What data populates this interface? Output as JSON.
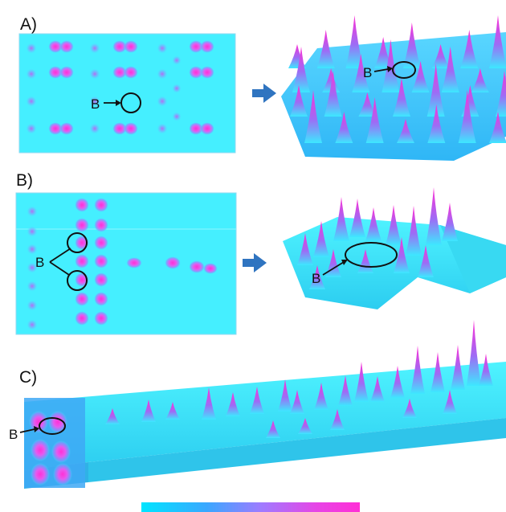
{
  "panels": [
    {
      "id": "A",
      "label": "A)",
      "marker": "B"
    },
    {
      "id": "B",
      "label": "B)",
      "marker": "B"
    },
    {
      "id": "C",
      "label": "C)",
      "marker": "B"
    }
  ],
  "colors": {
    "background": "#45efff",
    "low": "#3ff0ff",
    "mid": "#2f9cf2",
    "high": "#ff3fd9",
    "arrow": "#2f74c0",
    "annotation": "#111111"
  },
  "colorbar": {
    "stops": [
      "#00e5ff",
      "#3aa7ff",
      "#9f7bff",
      "#e645e6",
      "#ff2fd6"
    ]
  }
}
